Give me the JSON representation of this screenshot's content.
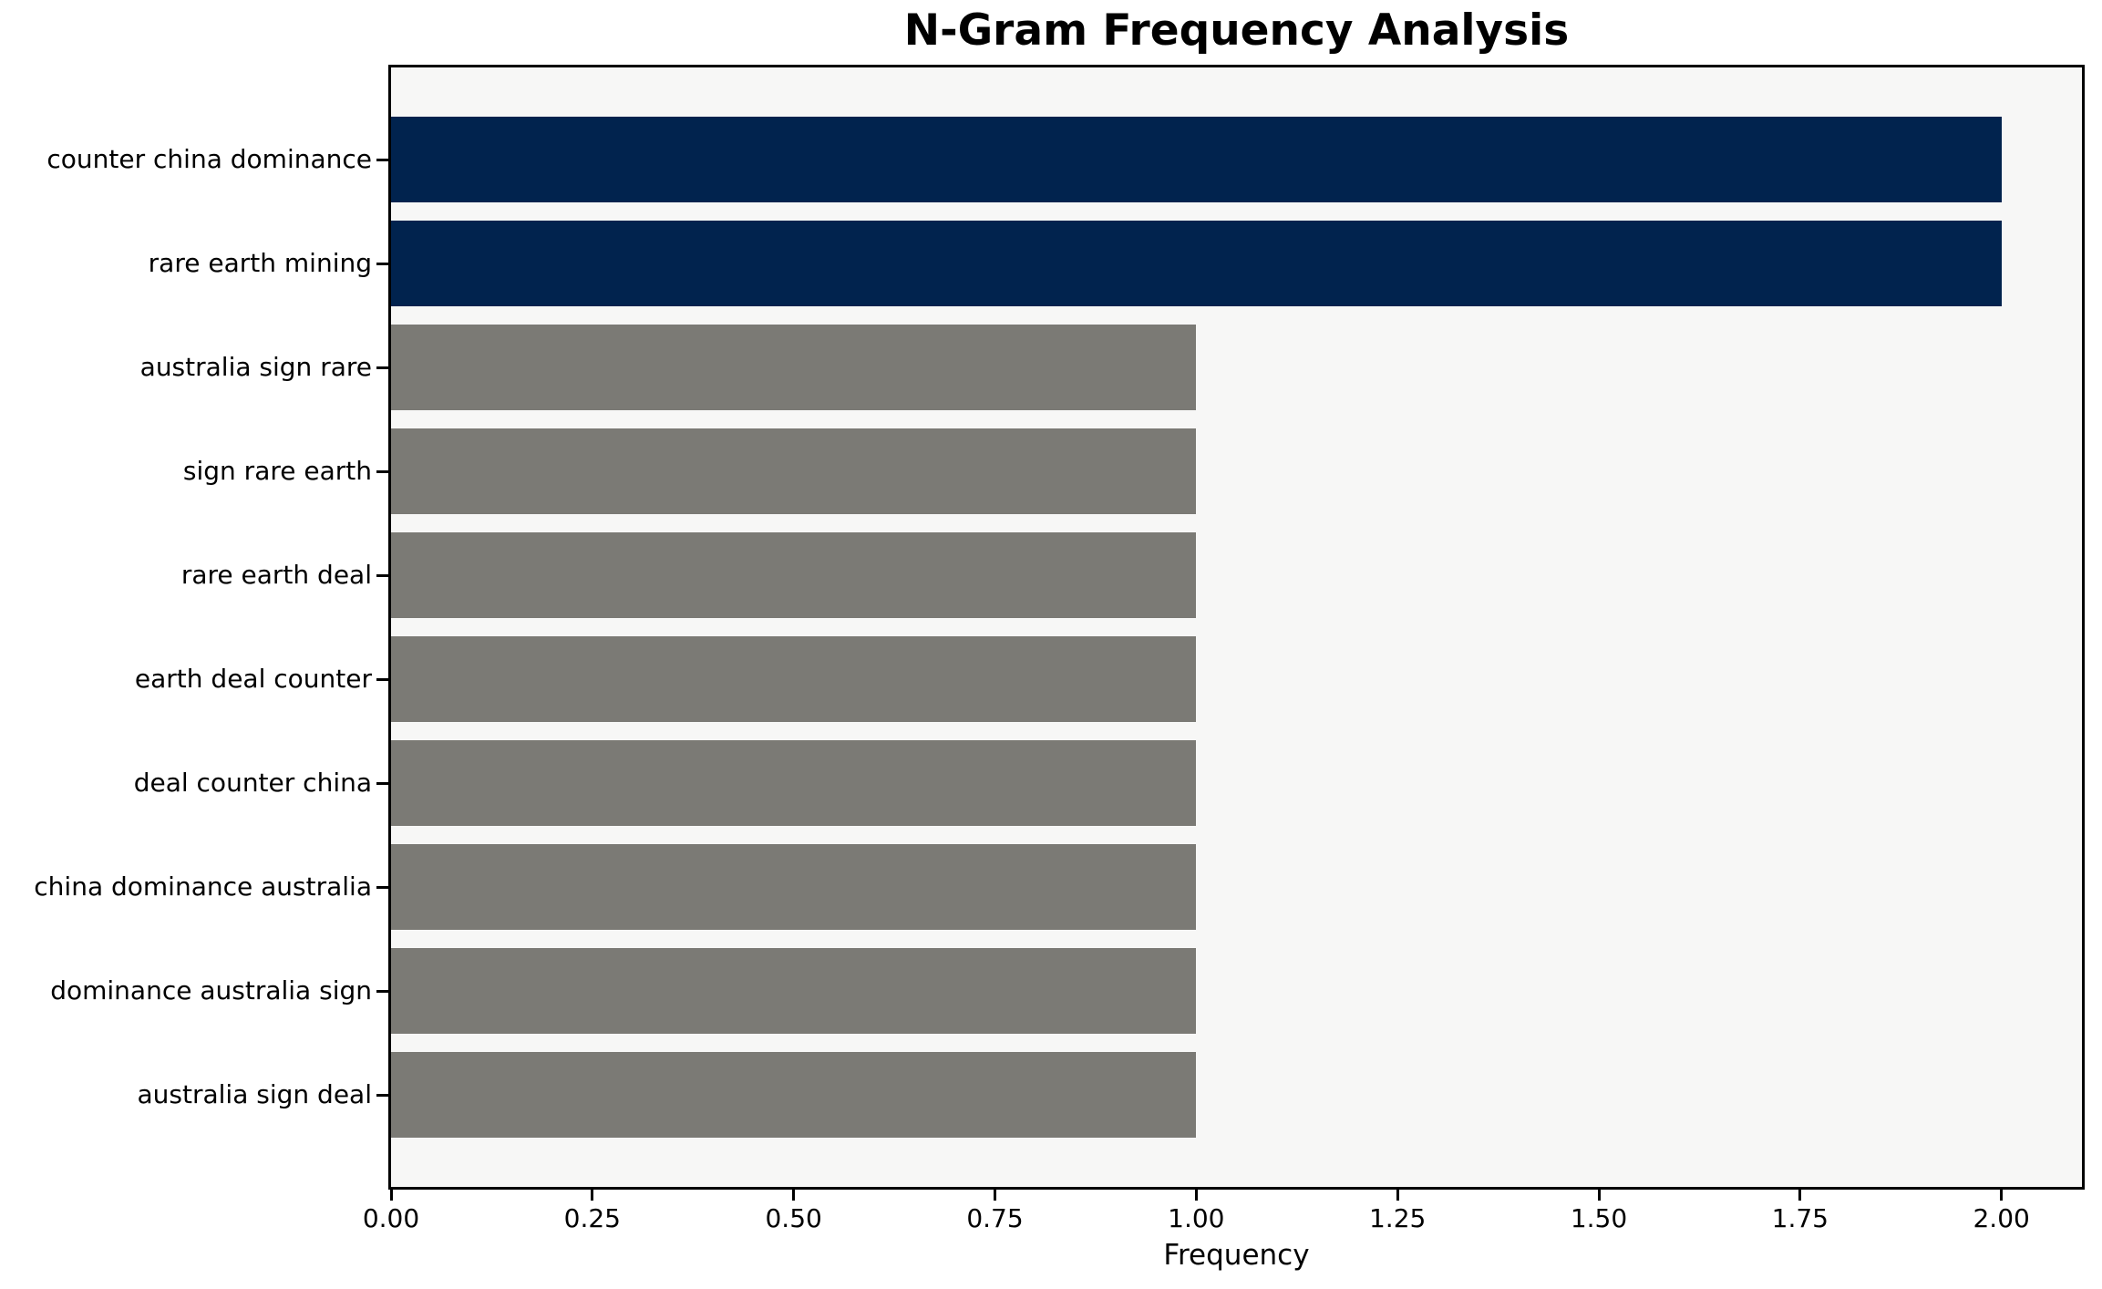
{
  "chart_data": {
    "type": "bar",
    "orientation": "horizontal",
    "title": "N-Gram Frequency Analysis",
    "xlabel": "Frequency",
    "ylabel": "",
    "categories": [
      "counter china dominance",
      "rare earth mining",
      "australia sign rare",
      "sign rare earth",
      "rare earth deal",
      "earth deal counter",
      "deal counter china",
      "china dominance australia",
      "dominance australia sign",
      "australia sign deal"
    ],
    "values": [
      2,
      2,
      1,
      1,
      1,
      1,
      1,
      1,
      1,
      1
    ],
    "bar_colors": [
      "#01234E",
      "#01234E",
      "#7B7A75",
      "#7B7A75",
      "#7B7A75",
      "#7B7A75",
      "#7B7A75",
      "#7B7A75",
      "#7B7A75",
      "#7B7A75"
    ],
    "highlight_color": "#01234E",
    "default_color": "#7B7A75",
    "xlim": [
      0,
      2.1
    ],
    "x_ticks": [
      0,
      0.25,
      0.5,
      0.75,
      1.0,
      1.25,
      1.5,
      1.75,
      2.0
    ],
    "x_tick_labels": [
      "0.00",
      "0.25",
      "0.50",
      "0.75",
      "1.00",
      "1.25",
      "1.50",
      "1.75",
      "2.00"
    ],
    "grid": "off",
    "legend": "none",
    "plot_background": "#f7f7f6",
    "figure_background": "#ffffff",
    "spine_color": "#000000"
  }
}
